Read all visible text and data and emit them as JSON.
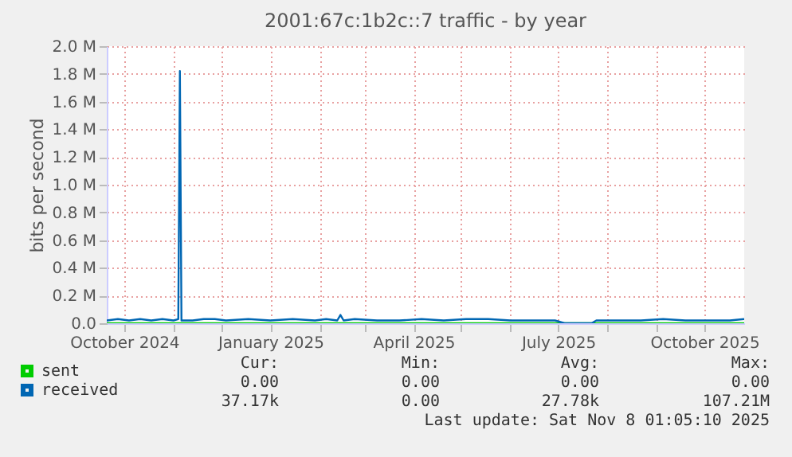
{
  "chart_data": {
    "type": "line",
    "title": "2001:67c:1b2c::7 traffic - by year",
    "ylabel": "bits per second",
    "series": [
      {
        "name": "sent",
        "color": "#00cc00",
        "x": [
          "2024-09-20",
          "2025-10-26"
        ],
        "values": [
          0,
          0
        ]
      },
      {
        "name": "received",
        "color": "#0066b3",
        "x": [
          "2024-09-20",
          "2024-09-27",
          "2024-10-04",
          "2024-10-11",
          "2024-10-18",
          "2024-10-25",
          "2024-11-01",
          "2024-11-04",
          "2024-11-05",
          "2024-11-06",
          "2024-11-13",
          "2024-11-20",
          "2024-11-27",
          "2024-12-04",
          "2024-12-18",
          "2025-01-01",
          "2025-01-15",
          "2025-01-29",
          "2025-02-05",
          "2025-02-12",
          "2025-02-14",
          "2025-02-16",
          "2025-02-23",
          "2025-03-09",
          "2025-03-23",
          "2025-04-06",
          "2025-04-20",
          "2025-05-04",
          "2025-05-18",
          "2025-06-01",
          "2025-06-15",
          "2025-06-29",
          "2025-07-05",
          "2025-07-22",
          "2025-07-25",
          "2025-08-08",
          "2025-08-22",
          "2025-09-05",
          "2025-09-19",
          "2025-10-03",
          "2025-10-17",
          "2025-10-26"
        ],
        "values": [
          20000,
          30000,
          20000,
          30000,
          20000,
          30000,
          20000,
          30000,
          1820000,
          20000,
          20000,
          30000,
          30000,
          20000,
          30000,
          20000,
          30000,
          20000,
          30000,
          20000,
          60000,
          20000,
          30000,
          20000,
          20000,
          30000,
          20000,
          30000,
          30000,
          20000,
          20000,
          20000,
          0,
          0,
          20000,
          20000,
          20000,
          30000,
          20000,
          20000,
          20000,
          30000
        ]
      }
    ],
    "xlim": [
      "2024-09-20",
      "2025-10-26"
    ],
    "xticks": [
      {
        "value": "2024-10-01",
        "label": "October 2024"
      },
      {
        "value": "2024-11-01",
        "label": null
      },
      {
        "value": "2024-12-01",
        "label": null
      },
      {
        "value": "2025-01-01",
        "label": "January 2025"
      },
      {
        "value": "2025-02-01",
        "label": null
      },
      {
        "value": "2025-03-01",
        "label": null
      },
      {
        "value": "2025-04-01",
        "label": "April 2025"
      },
      {
        "value": "2025-05-01",
        "label": null
      },
      {
        "value": "2025-06-01",
        "label": null
      },
      {
        "value": "2025-07-01",
        "label": "July 2025"
      },
      {
        "value": "2025-08-01",
        "label": null
      },
      {
        "value": "2025-09-01",
        "label": null
      },
      {
        "value": "2025-10-01",
        "label": "October 2025"
      }
    ],
    "ylim": [
      0,
      2000000
    ],
    "yticks": [
      {
        "value": 0,
        "label": "0.0"
      },
      {
        "value": 200000,
        "label": "0.2 M"
      },
      {
        "value": 400000,
        "label": "0.4 M"
      },
      {
        "value": 600000,
        "label": "0.6 M"
      },
      {
        "value": 800000,
        "label": "0.8 M"
      },
      {
        "value": 1000000,
        "label": "1.0 M"
      },
      {
        "value": 1200000,
        "label": "1.2 M"
      },
      {
        "value": 1400000,
        "label": "1.4 M"
      },
      {
        "value": 1600000,
        "label": "1.6 M"
      },
      {
        "value": 1800000,
        "label": "1.8 M"
      },
      {
        "value": 2000000,
        "label": "2.0 M"
      }
    ],
    "grid": true,
    "legend": "bottom",
    "marker": "none",
    "line_style": "solid",
    "annotations": [
      "Cur:",
      "Min:",
      "Avg:",
      "Max:",
      "0.00",
      "0.00",
      "0.00",
      "0.00",
      "37.17k",
      "0.00",
      "27.78k",
      "107.21M",
      "Last update: Sat Nov  8 01:05:10 2025"
    ]
  }
}
